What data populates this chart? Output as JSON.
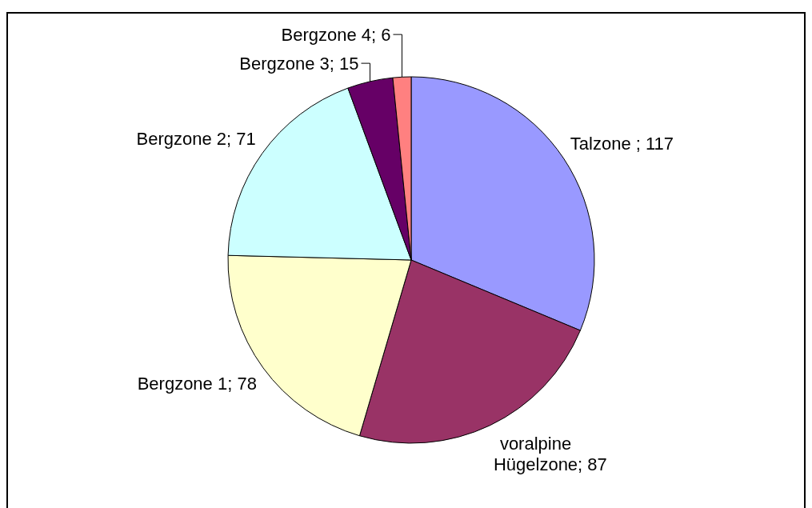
{
  "chart_data": {
    "type": "pie",
    "categories": [
      "Talzone ",
      "voralpine Hügelzone",
      "Bergzone 1",
      "Bergzone 2",
      "Bergzone 3",
      "Bergzone 4"
    ],
    "values": [
      117,
      87,
      78,
      71,
      15,
      6
    ],
    "value_labels": [
      "; 117",
      "; 87",
      "; 78",
      "; 71",
      "; 15",
      "; 6"
    ],
    "colors": [
      "#9999ff",
      "#993366",
      "#ffffcc",
      "#ccffff",
      "#660066",
      "#ff8080"
    ]
  }
}
